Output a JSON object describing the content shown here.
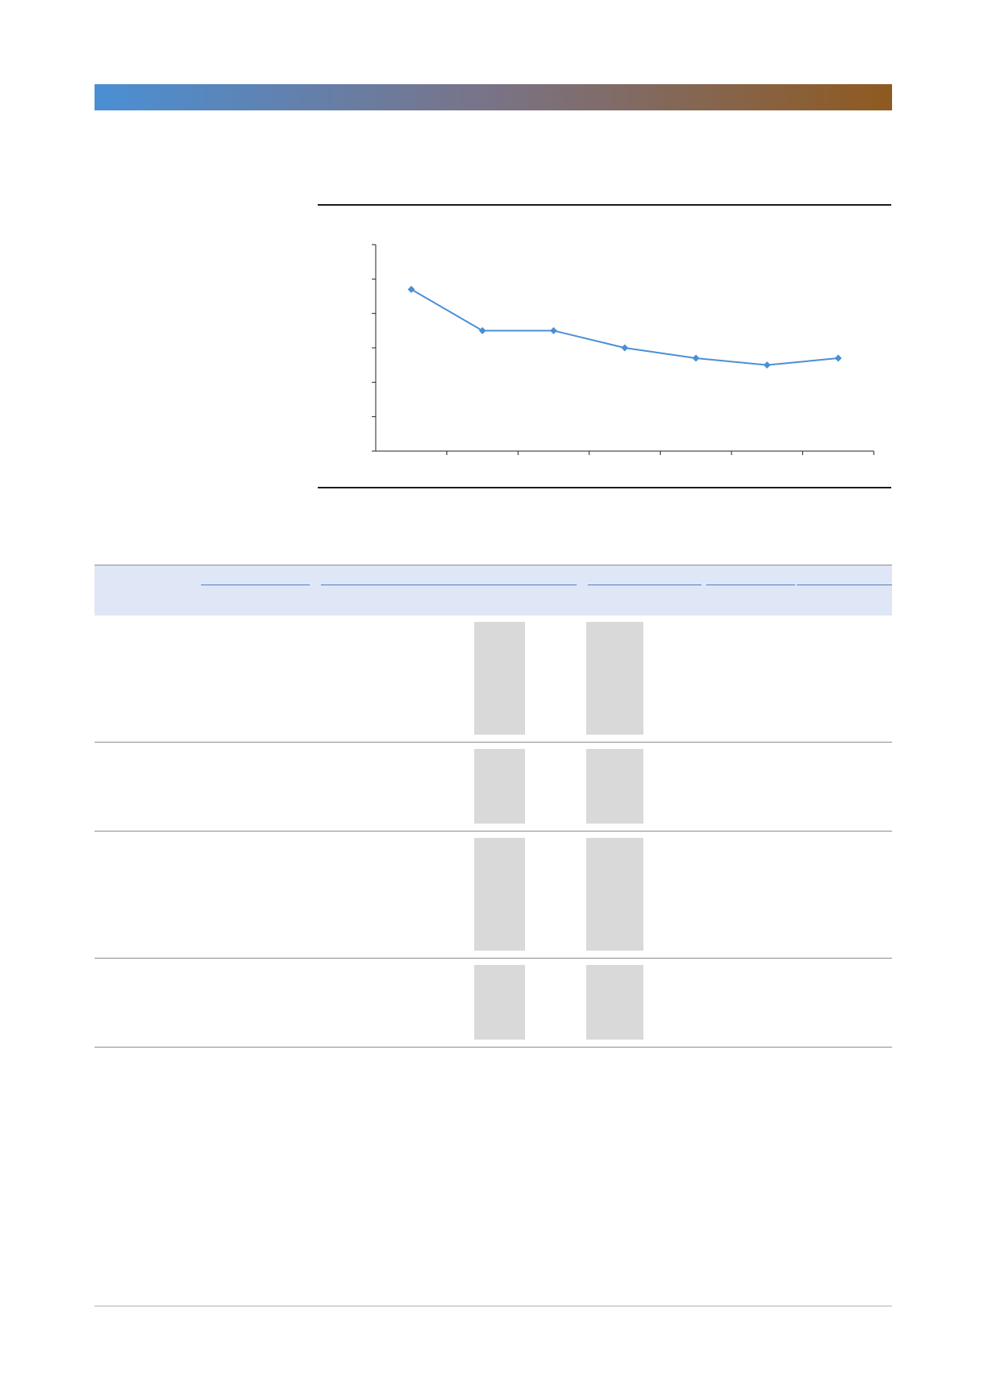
{
  "colors": {
    "header_gradient_start": "#4a8fd4",
    "header_gradient_mid": "#7a7386",
    "header_gradient_end": "#8f5a1f",
    "series_line": "#4a8fd4",
    "table_header_bg": "#dfe6f6",
    "placeholder_fill": "#d9d9d9"
  },
  "chart_data": {
    "type": "line",
    "title": "",
    "xlabel": "",
    "ylabel": "",
    "categories": [
      "",
      "",
      "",
      "",
      "",
      "",
      ""
    ],
    "ylim": [
      0,
      6
    ],
    "grid": false,
    "series": [
      {
        "values": [
          4.7,
          3.5,
          3.5,
          3.0,
          2.7,
          2.5,
          2.7
        ]
      }
    ]
  },
  "table": {
    "header_columns": [
      "",
      "",
      "",
      "",
      "",
      ""
    ],
    "rows": [
      {
        "cells": [
          "",
          "",
          "",
          "",
          "",
          ""
        ]
      },
      {
        "cells": [
          "",
          "",
          "",
          "",
          "",
          ""
        ]
      },
      {
        "cells": [
          "",
          "",
          "",
          "",
          "",
          ""
        ]
      },
      {
        "cells": [
          "",
          "",
          "",
          "",
          "",
          ""
        ]
      }
    ]
  }
}
